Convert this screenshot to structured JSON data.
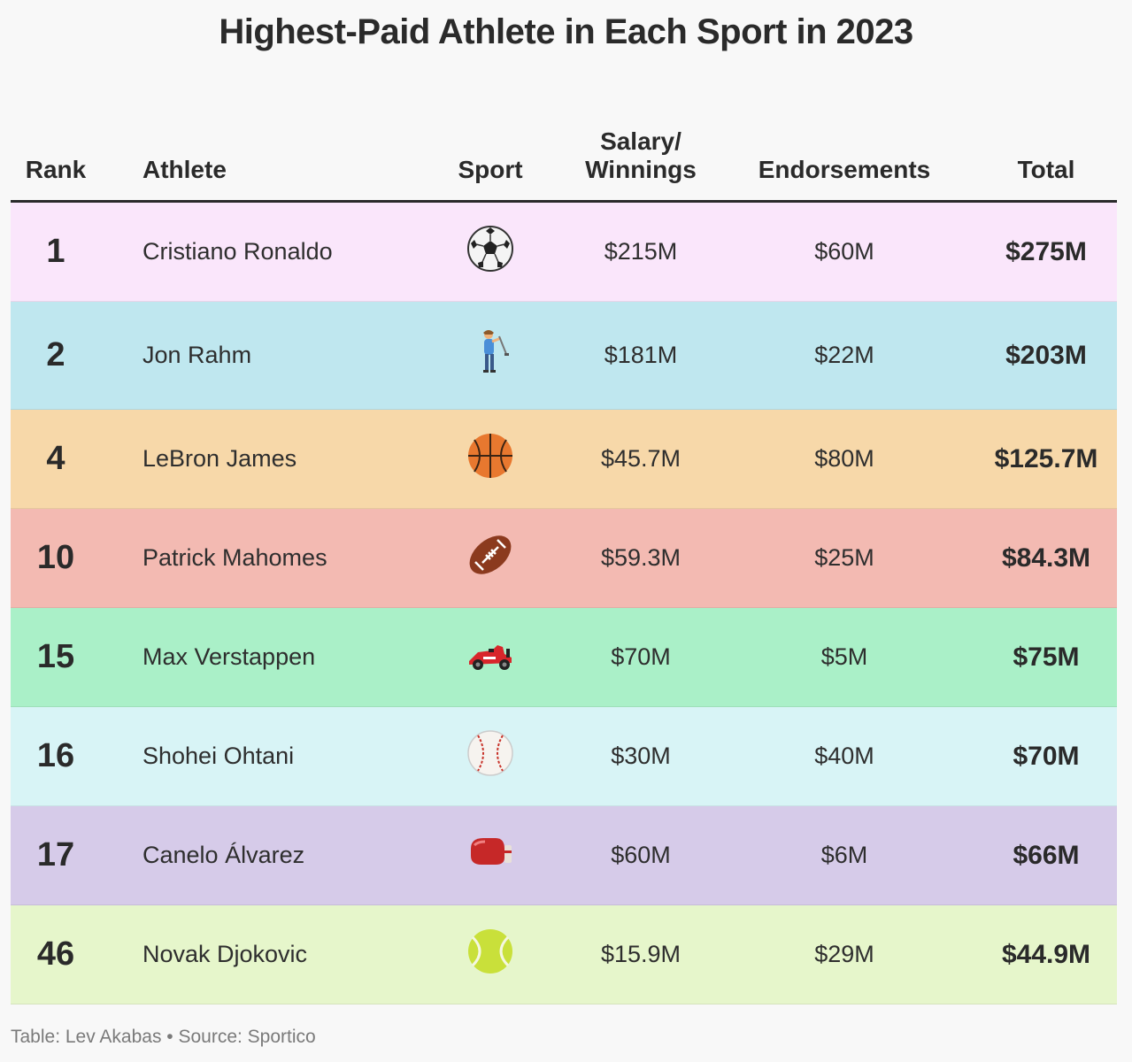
{
  "chart_data": {
    "type": "table",
    "title": "Highest-Paid Athlete in Each Sport in 2023",
    "columns": {
      "rank": "Rank",
      "athlete": "Athlete",
      "sport": "Sport",
      "salary_line1": "Salary/",
      "salary_line2": "Winnings",
      "endorsements": "Endorsements",
      "total": "Total"
    },
    "rows": [
      {
        "rank": "1",
        "athlete": "Cristiano Ronaldo",
        "sport_icon": "soccer-ball-icon",
        "salary": "$215M",
        "endorsements": "$60M",
        "total": "$275M",
        "color": "#fae6fb"
      },
      {
        "rank": "2",
        "athlete": "Jon Rahm",
        "sport_icon": "golfer-icon",
        "salary": "$181M",
        "endorsements": "$22M",
        "total": "$203M",
        "color": "#bfe7ef"
      },
      {
        "rank": "4",
        "athlete": "LeBron James",
        "sport_icon": "basketball-icon",
        "salary": "$45.7M",
        "endorsements": "$80M",
        "total": "$125.7M",
        "color": "#f7d8a9"
      },
      {
        "rank": "10",
        "athlete": "Patrick Mahomes",
        "sport_icon": "american-football-icon",
        "salary": "$59.3M",
        "endorsements": "$25M",
        "total": "$84.3M",
        "color": "#f3bab2"
      },
      {
        "rank": "15",
        "athlete": "Max Verstappen",
        "sport_icon": "race-car-icon",
        "salary": "$70M",
        "endorsements": "$5M",
        "total": "$75M",
        "color": "#aaf0c8"
      },
      {
        "rank": "16",
        "athlete": "Shohei Ohtani",
        "sport_icon": "baseball-icon",
        "salary": "$30M",
        "endorsements": "$40M",
        "total": "$70M",
        "color": "#d8f4f6"
      },
      {
        "rank": "17",
        "athlete": "Canelo Álvarez",
        "sport_icon": "boxing-glove-icon",
        "salary": "$60M",
        "endorsements": "$6M",
        "total": "$66M",
        "color": "#d6cbe9"
      },
      {
        "rank": "46",
        "athlete": "Novak Djokovic",
        "sport_icon": "tennis-ball-icon",
        "salary": "$15.9M",
        "endorsements": "$29M",
        "total": "$44.9M",
        "color": "#e6f6cb"
      }
    ]
  },
  "footer": "Table: Lev Akabas • Source: Sportico"
}
